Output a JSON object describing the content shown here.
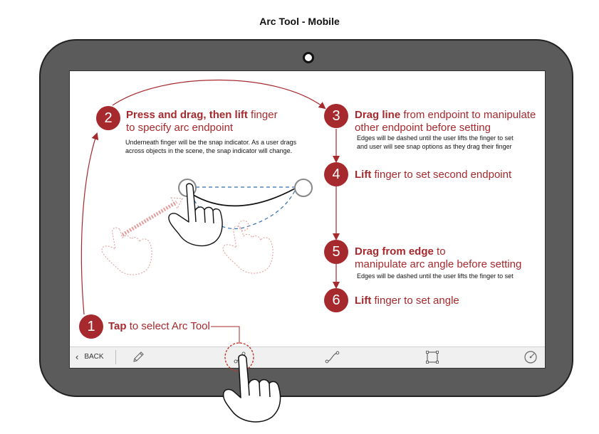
{
  "page_title": "Arc Tool - Mobile",
  "colors": {
    "accent": "#a6292d",
    "tablet": "#5b5b5b",
    "dash_line": "#2f6fb5"
  },
  "steps": [
    {
      "number": "1",
      "bold": "Tap",
      "text": " to select Arc Tool"
    },
    {
      "number": "2",
      "bold": "Press and drag, then lift",
      "text": " finger",
      "line2": "to specify arc endpoint",
      "note1": "Underneath finger will be the snap indicator.  As a user drags",
      "note2": "across objects in the scene, the snap indicator will change."
    },
    {
      "number": "3",
      "bold": "Drag line",
      "text": " from endpoint to manipulate",
      "line2": "other endpoint before setting",
      "note1": "Edges will be dashed until the user lifts the finger to set",
      "note2": "and user will see snap options as they drag their finger"
    },
    {
      "number": "4",
      "bold": "Lift",
      "text": "  finger to set second endpoint"
    },
    {
      "number": "5",
      "bold": "Drag from edge",
      "text": " to",
      "line2": "manipulate arc angle before setting",
      "note1": "Edges will be dashed until the user lifts the finger to set"
    },
    {
      "number": "6",
      "bold": "Lift",
      "text": "  finger to set angle"
    }
  ],
  "toolbar": {
    "back_label": "BACK",
    "icons": [
      "chevron-left-icon",
      "pencil-icon",
      "arc-tool-icon",
      "line-tool-icon",
      "rectangle-tool-icon",
      "circle-tool-icon"
    ]
  }
}
